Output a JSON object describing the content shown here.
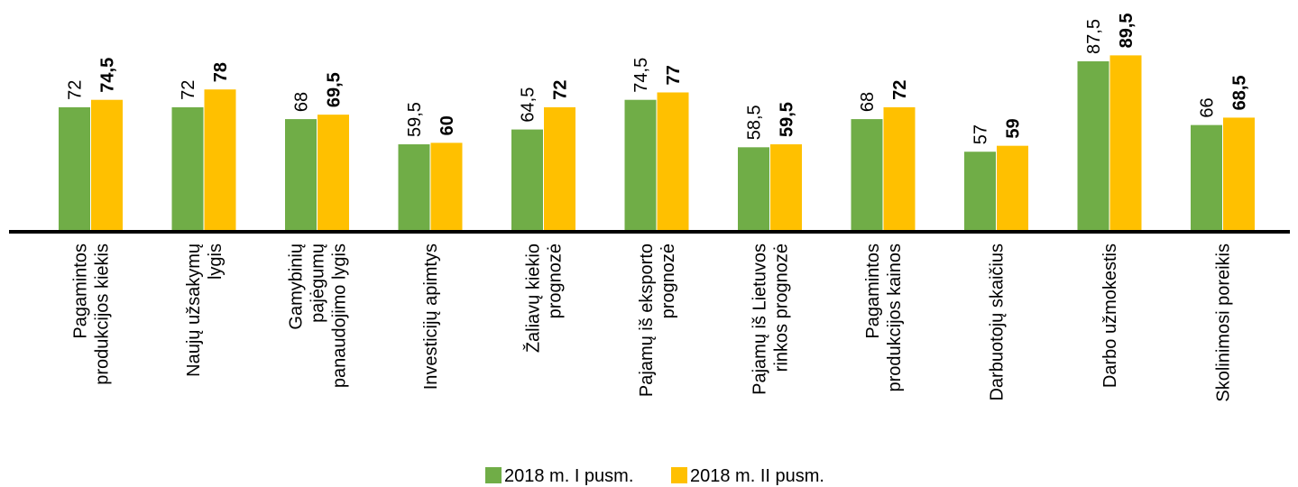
{
  "chart_data": {
    "type": "bar",
    "categories": [
      "Pagamintos\nprodukcijos kiekis",
      "Naujų užsakymų\nlygis",
      "Gamybinių\npajėgumų\npanaudojimo lygis",
      "Investicijų apimtys",
      "Žaliavų kiekio\nprognozė",
      "Pajamų iš eksporto\nprognozė",
      "Pajamų iš Lietuvos\nrinkos prognozė",
      "Pagamintos\nprodukcijos kainos",
      "Darbuotojų skaičius",
      "Darbo užmokestis",
      "Skolinimosi poreikis"
    ],
    "series": [
      {
        "name": "2018 m. I pusm.",
        "color": "#70ad47",
        "values": [
          72,
          72,
          68,
          59.5,
          64.5,
          74.5,
          58.5,
          68,
          57,
          87.5,
          66
        ],
        "value_labels": [
          "72",
          "72",
          "68",
          "59,5",
          "64,5",
          "74,5",
          "58,5",
          "68",
          "57",
          "87,5",
          "66"
        ]
      },
      {
        "name": "2018 m. II pusm.",
        "color": "#ffc000",
        "values": [
          74.5,
          78,
          69.5,
          60,
          72,
          77,
          59.5,
          72,
          59,
          89.5,
          68.5
        ],
        "value_labels": [
          "74,5",
          "78",
          "69,5",
          "60",
          "72",
          "77",
          "59,5",
          "72",
          "59",
          "89,5",
          "68,5"
        ]
      }
    ],
    "ylim": [
      30,
      110
    ],
    "legend": "bottom"
  }
}
